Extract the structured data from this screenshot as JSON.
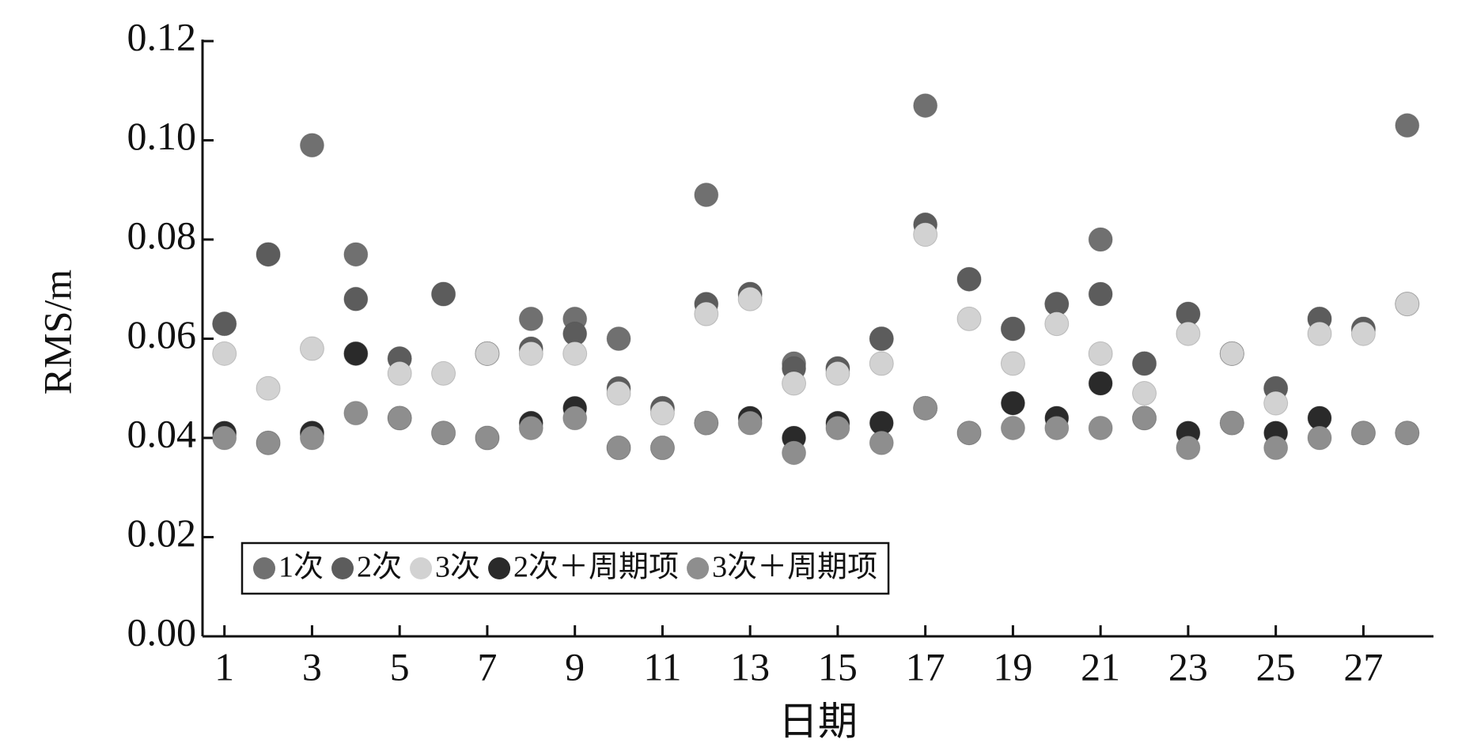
{
  "chart_data": {
    "type": "scatter",
    "x_label": "日期",
    "y_label": "RMS/m",
    "x": [
      1,
      2,
      3,
      4,
      5,
      6,
      7,
      8,
      9,
      10,
      11,
      12,
      13,
      14,
      15,
      16,
      17,
      18,
      19,
      20,
      21,
      22,
      23,
      24,
      25,
      26,
      27,
      28
    ],
    "xlim": [
      0.5,
      28.6
    ],
    "xticks": [
      1,
      3,
      5,
      7,
      9,
      11,
      13,
      15,
      17,
      19,
      21,
      23,
      25,
      27
    ],
    "ylim": [
      0,
      0.12
    ],
    "yticks": [
      {
        "value": 0,
        "label": "0.00"
      },
      {
        "value": 0.02,
        "label": "0.02"
      },
      {
        "value": 0.04,
        "label": "0.04"
      },
      {
        "value": 0.06,
        "label": "0.06"
      },
      {
        "value": 0.08,
        "label": "0.08"
      },
      {
        "value": 0.1,
        "label": "0.10"
      },
      {
        "value": 0.12,
        "label": "0.12"
      }
    ],
    "legend": "lower-left",
    "series": [
      {
        "name": "1次",
        "color": "#707070",
        "values": [
          0.063,
          0.077,
          0.099,
          0.077,
          0.056,
          0.069,
          0.057,
          0.064,
          0.064,
          0.06,
          0.046,
          0.089,
          0.069,
          0.055,
          0.054,
          0.06,
          0.107,
          0.072,
          0.062,
          0.067,
          0.08,
          0.055,
          0.065,
          0.057,
          0.05,
          0.064,
          0.062,
          0.103
        ]
      },
      {
        "name": "2次",
        "color": "#5c5c5c",
        "values": [
          0.063,
          0.077,
          0.041,
          0.068,
          0.056,
          0.069,
          0.057,
          0.058,
          0.061,
          0.05,
          0.046,
          0.067,
          0.069,
          0.054,
          0.054,
          0.06,
          0.083,
          0.072,
          0.062,
          0.067,
          0.069,
          0.055,
          0.065,
          0.057,
          0.05,
          0.064,
          0.062,
          0.067
        ]
      },
      {
        "name": "3次",
        "color": "#d2d2d2",
        "values": [
          0.057,
          0.05,
          0.058,
          0.057,
          0.053,
          0.053,
          0.057,
          0.057,
          0.057,
          0.049,
          0.045,
          0.065,
          0.068,
          0.051,
          0.053,
          0.055,
          0.081,
          0.064,
          0.055,
          0.063,
          0.057,
          0.049,
          0.061,
          0.057,
          0.047,
          0.061,
          0.061,
          0.067
        ]
      },
      {
        "name": "2次＋周期项",
        "color": "#2a2a2a",
        "values": [
          0.041,
          0.039,
          0.041,
          0.057,
          0.044,
          0.041,
          0.04,
          0.043,
          0.046,
          0.038,
          0.038,
          0.043,
          0.044,
          0.04,
          0.043,
          0.043,
          0.046,
          0.041,
          0.047,
          0.044,
          0.051,
          0.044,
          0.041,
          0.043,
          0.041,
          0.044,
          0.041,
          0.041
        ]
      },
      {
        "name": "3次＋周期项",
        "color": "#8e8e8e",
        "values": [
          0.04,
          0.039,
          0.04,
          0.045,
          0.044,
          0.041,
          0.04,
          0.042,
          0.044,
          0.038,
          0.038,
          0.043,
          0.043,
          0.037,
          0.042,
          0.039,
          0.046,
          0.041,
          0.042,
          0.042,
          0.042,
          0.044,
          0.038,
          0.043,
          0.038,
          0.04,
          0.041,
          0.041
        ]
      }
    ]
  }
}
